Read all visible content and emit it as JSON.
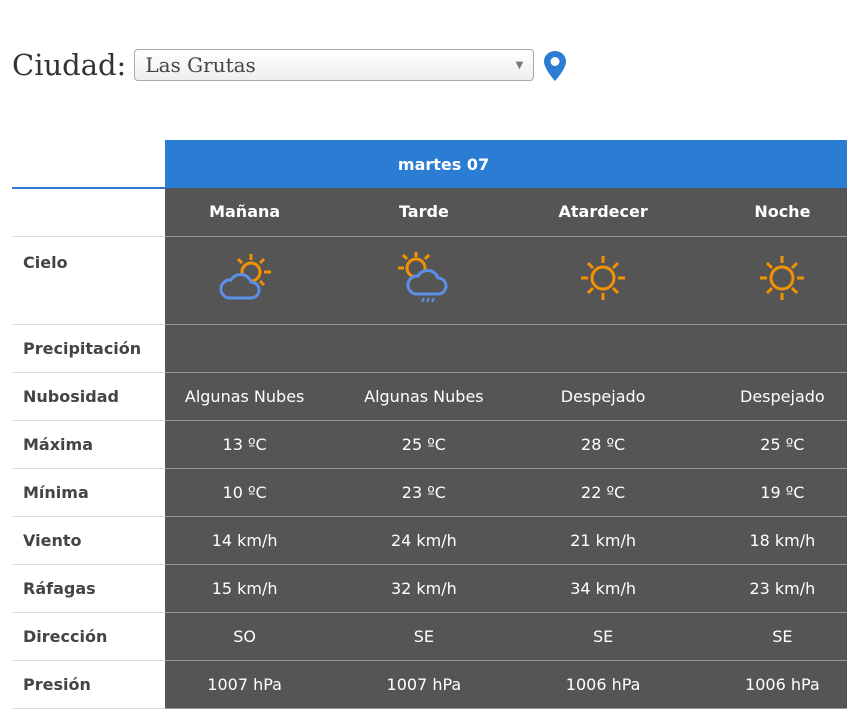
{
  "city": {
    "label": "Ciudad:",
    "selected": "Las Grutas"
  },
  "day": "martes 07",
  "periods": [
    "Mañana",
    "Tarde",
    "Atardecer",
    "Noche"
  ],
  "rows": {
    "cielo": {
      "label": "Cielo",
      "icons": [
        "partly-cloudy-icon",
        "partly-cloudy-rain-icon",
        "sun-icon",
        "sun-icon"
      ]
    },
    "precipitacion": {
      "label": "Precipitación",
      "values": [
        "",
        "",
        "",
        ""
      ]
    },
    "nubosidad": {
      "label": "Nubosidad",
      "values": [
        "Algunas Nubes",
        "Algunas Nubes",
        "Despejado",
        "Despejado"
      ]
    },
    "maxima": {
      "label": "Máxima",
      "values": [
        "13 ºC",
        "25 ºC",
        "28 ºC",
        "25 ºC"
      ]
    },
    "minima": {
      "label": "Mínima",
      "values": [
        "10 ºC",
        "23 ºC",
        "22 ºC",
        "19 ºC"
      ]
    },
    "viento": {
      "label": "Viento",
      "values": [
        "14 km/h",
        "24 km/h",
        "21 km/h",
        "18 km/h"
      ]
    },
    "rafagas": {
      "label": "Ráfagas",
      "values": [
        "15 km/h",
        "32 km/h",
        "34 km/h",
        "23 km/h"
      ]
    },
    "direccion": {
      "label": "Dirección",
      "values": [
        "SO",
        "SE",
        "SE",
        "SE"
      ]
    },
    "presion": {
      "label": "Presión",
      "values": [
        "1007 hPa",
        "1007 hPa",
        "1006 hPa",
        "1006 hPa"
      ]
    }
  },
  "colors": {
    "accent": "#2a7dd2",
    "cell_bg": "#555555",
    "sun": "#f39200",
    "cloud": "#5b8fe8"
  }
}
